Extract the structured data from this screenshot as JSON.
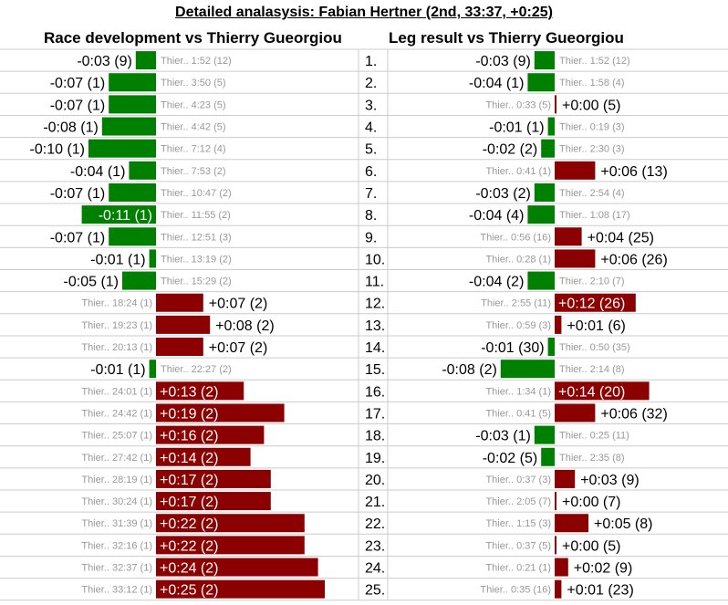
{
  "title": "Detailed analasysis: Fabian Hertner (2nd, 33:37, +0:25)",
  "left_heading": "Race development vs Thierry Gueorgiou",
  "right_heading": "Leg result vs Thierry Gueorgiou",
  "colors": {
    "faster": "#008000",
    "slower": "#8b0000",
    "reference_text": "#999999",
    "gridline": "#cccccc"
  },
  "chart_data": [
    {
      "type": "bar",
      "panel": "Race development vs Thierry Gueorgiou",
      "categories": [
        "1",
        "2",
        "3",
        "4",
        "5",
        "6",
        "7",
        "8",
        "9",
        "10",
        "11",
        "12",
        "13",
        "14",
        "15",
        "16",
        "17",
        "18",
        "19",
        "20",
        "21",
        "22",
        "23",
        "24",
        "25"
      ],
      "values_seconds": [
        -3,
        -7,
        -7,
        -8,
        -10,
        -4,
        -7,
        -11,
        -7,
        -1,
        -5,
        7,
        8,
        7,
        -1,
        13,
        19,
        16,
        14,
        17,
        17,
        22,
        22,
        24,
        25
      ],
      "labels": [
        "-0:03 (9)",
        "-0:07 (1)",
        "-0:07 (1)",
        "-0:08 (1)",
        "-0:10 (1)",
        "-0:04 (1)",
        "-0:07 (1)",
        "-0:11 (1)",
        "-0:07 (1)",
        "-0:01 (1)",
        "-0:05 (1)",
        "+0:07 (2)",
        "+0:08 (2)",
        "+0:07 (2)",
        "-0:01 (1)",
        "+0:13 (2)",
        "+0:19 (2)",
        "+0:16 (2)",
        "+0:14 (2)",
        "+0:17 (2)",
        "+0:17 (2)",
        "+0:22 (2)",
        "+0:22 (2)",
        "+0:24 (2)",
        "+0:25 (2)"
      ],
      "reference": [
        "Thier.. 1:52 (12)",
        "Thier.. 3:50 (5)",
        "Thier.. 4:23 (5)",
        "Thier.. 4:42 (5)",
        "Thier.. 7:12 (4)",
        "Thier.. 7:53 (2)",
        "Thier.. 10:47 (2)",
        "Thier.. 11:55 (2)",
        "Thier.. 12:51 (3)",
        "Thier.. 13:19 (2)",
        "Thier.. 15:29 (2)",
        "Thier.. 18:24 (1)",
        "Thier.. 19:23 (1)",
        "Thier.. 20:13 (1)",
        "Thier.. 22:27 (2)",
        "Thier.. 24:01 (1)",
        "Thier.. 24:42 (1)",
        "Thier.. 25:07 (1)",
        "Thier.. 27:42 (1)",
        "Thier.. 28:19 (1)",
        "Thier.. 30:24 (1)",
        "Thier.. 31:39 (1)",
        "Thier.. 32:16 (1)",
        "Thier.. 32:37 (1)",
        "Thier.. 33:12 (1)"
      ]
    },
    {
      "type": "bar",
      "panel": "Leg result vs Thierry Gueorgiou",
      "categories": [
        "1.",
        "2.",
        "3.",
        "4.",
        "5.",
        "6.",
        "7.",
        "8.",
        "9.",
        "10.",
        "11.",
        "12.",
        "13.",
        "14.",
        "15.",
        "16.",
        "17.",
        "18.",
        "19.",
        "20.",
        "21.",
        "22.",
        "23.",
        "24.",
        "25."
      ],
      "values_seconds": [
        -3,
        -4,
        0,
        -1,
        -2,
        6,
        -3,
        -4,
        4,
        6,
        -4,
        12,
        1,
        -1,
        -8,
        14,
        6,
        -3,
        -2,
        3,
        0,
        5,
        0,
        2,
        1
      ],
      "labels": [
        "-0:03 (9)",
        "-0:04 (1)",
        "+0:00 (5)",
        "-0:01 (1)",
        "-0:02 (2)",
        "+0:06 (13)",
        "-0:03 (2)",
        "-0:04 (4)",
        "+0:04 (25)",
        "+0:06 (26)",
        "-0:04 (2)",
        "+0:12 (26)",
        "+0:01 (6)",
        "-0:01 (30)",
        "-0:08 (2)",
        "+0:14 (20)",
        "+0:06 (32)",
        "-0:03 (1)",
        "-0:02 (5)",
        "+0:03 (9)",
        "+0:00 (7)",
        "+0:05 (8)",
        "+0:00 (5)",
        "+0:02 (9)",
        "+0:01 (23)"
      ],
      "reference": [
        "Thier.. 1:52 (12)",
        "Thier.. 1:58 (4)",
        "Thier.. 0:33 (5)",
        "Thier.. 0:19 (3)",
        "Thier.. 2:30 (3)",
        "Thier.. 0:41 (1)",
        "Thier.. 2:54 (4)",
        "Thier.. 1:08 (17)",
        "Thier.. 0:56 (16)",
        "Thier.. 0:28 (1)",
        "Thier.. 2:10 (7)",
        "Thier.. 2:55 (11)",
        "Thier.. 0:59 (3)",
        "Thier.. 0:50 (35)",
        "Thier.. 2:14 (8)",
        "Thier.. 1:34 (1)",
        "Thier.. 0:41 (5)",
        "Thier.. 0:25 (11)",
        "Thier.. 2:35 (8)",
        "Thier.. 0:37 (3)",
        "Thier.. 2:05 (7)",
        "Thier.. 1:15 (3)",
        "Thier.. 0:37 (5)",
        "Thier.. 0:21 (1)",
        "Thier.. 0:35 (16)"
      ]
    }
  ]
}
